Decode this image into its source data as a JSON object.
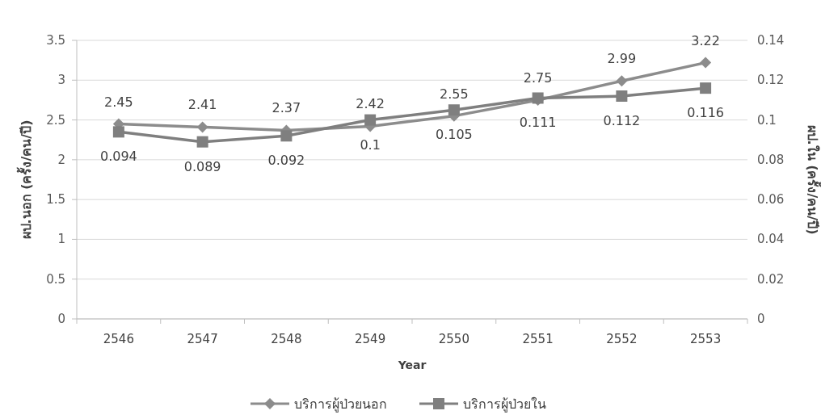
{
  "chart_data": {
    "type": "line",
    "xlabel": "Year",
    "ylabel": "ผป.นอก (ครั้ง/คน/ปี)",
    "y2label": "ผป.ใน (ครั้ง/คน/ปี)",
    "categories": [
      "2546",
      "2547",
      "2548",
      "2549",
      "2550",
      "2551",
      "2552",
      "2553"
    ],
    "series": [
      {
        "name": "บริการผู้ป่วยนอก",
        "color": "#8c8c8c",
        "marker": "diamond",
        "values": [
          2.45,
          2.41,
          2.37,
          2.42,
          2.55,
          2.75,
          2.99,
          3.22
        ]
      },
      {
        "name": "บริการผู้ป่วยใน",
        "color": "#7f7f7f",
        "marker": "square",
        "axis": "y2",
        "values": [
          0.094,
          0.089,
          0.092,
          0.1,
          0.105,
          0.111,
          0.112,
          0.116
        ]
      }
    ],
    "ylim": [
      0,
      3.5
    ],
    "yticks": [
      0,
      0.5,
      1,
      1.5,
      2,
      2.5,
      3,
      3.5
    ],
    "y2lim": [
      0,
      0.14
    ],
    "y2ticks": [
      0,
      0.02,
      0.04,
      0.06,
      0.08,
      0.1,
      0.12,
      0.14
    ],
    "grid": "y",
    "legend": "bottom",
    "data_labels": true
  }
}
